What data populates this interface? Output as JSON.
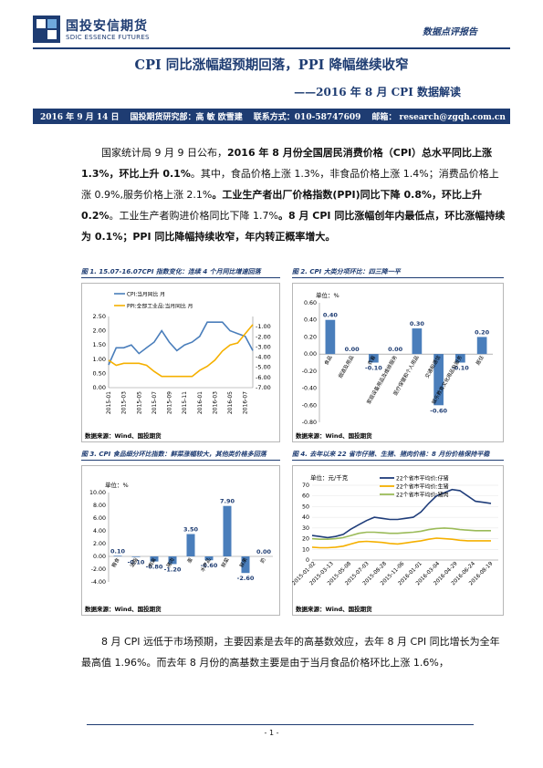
{
  "header": {
    "company_cn": "国投安信期货",
    "company_en": "SDIC ESSENCE FUTURES",
    "report_type": "数据点评报告"
  },
  "title": "CPI 同比涨幅超预期回落，PPI 降幅继续收窄",
  "subtitle": "——2016 年 8 月 CPI 数据解读",
  "info_bar": {
    "date": "2016 年 9 月 14 日",
    "dept": "国投期货研究部：高 敏 欧雪建",
    "contact": "联系方式：010-58747609",
    "email": "邮箱： research@zgqh.com.cn"
  },
  "para1": {
    "s1": "国家统计局 9 月 9 日公布，",
    "s2": "2016 年 8 月份全国居民消费价格（CPI）总水平同比上涨 1.3%，环比上升 0.1%",
    "s3": "。其中，食品价格上涨 1.3%，非食品价格上涨 1.4%；消费品价格上涨 0.9%,服务价格上涨 2.1%",
    "s4": "。工业生产者出厂价格指数(PPI)同比下降 0.8%，环比上升 0.2%",
    "s5": "。工业生产者购进价格同比下降 1.7%",
    "s6": "。8 月 CPI 同比涨幅创年内最低点，环比涨幅持续为 0.1%；PPI 同比降幅持续收窄，年内转正概率增大。"
  },
  "figures": {
    "fig1_title": "图 1. 15.07-16.07CPI 指数变化：连续 4 个月同比增速回落",
    "fig2_title": "图 2. CPI 大类分项环比：四三降一平",
    "fig3_title": "图 3. CPI 食品细分环比指数：鲜菜涨幅较大，其他类价格多回落",
    "fig4_title": "图 4. 去年以来 22 省市仔猪、生猪、猪肉价格：8 月份价格保持平稳",
    "source": "数据来源：Wind、国投期货"
  },
  "chart_data": [
    {
      "type": "line",
      "x": [
        "2015-01",
        "2015-02",
        "2015-03",
        "2015-04",
        "2015-05",
        "2015-06",
        "2015-07",
        "2015-08",
        "2015-09",
        "2015-10",
        "2015-11",
        "2015-12",
        "2016-01",
        "2016-02",
        "2016-03",
        "2016-04",
        "2016-05",
        "2016-06",
        "2016-07",
        "2016-08"
      ],
      "x_tick_labels": [
        "2015-01",
        "2015-03",
        "2015-05",
        "2015-07",
        "2015-09",
        "2015-11",
        "2016-01",
        "2016-03",
        "2016-05",
        "2016-07"
      ],
      "series": [
        {
          "name": "CPI:当月同比 月",
          "axis": "left",
          "color": "#4a7ebb",
          "values": [
            0.8,
            1.4,
            1.4,
            1.5,
            1.2,
            1.4,
            1.6,
            2.0,
            1.6,
            1.3,
            1.5,
            1.6,
            1.8,
            2.3,
            2.3,
            2.3,
            2.0,
            1.9,
            1.8,
            1.3
          ]
        },
        {
          "name": "PPI:全部工业品:当月同比 月",
          "axis": "right",
          "color": "#f5b000",
          "values": [
            -4.3,
            -4.8,
            -4.6,
            -4.6,
            -4.6,
            -4.8,
            -5.4,
            -5.9,
            -5.9,
            -5.9,
            -5.9,
            -5.9,
            -5.3,
            -4.9,
            -4.3,
            -3.4,
            -2.8,
            -2.6,
            -1.7,
            -0.8
          ]
        }
      ],
      "left_ticks": [
        "0.00",
        "0.50",
        "1.00",
        "1.50",
        "2.00",
        "2.50"
      ],
      "right_ticks": [
        "-1.00",
        "-2.00",
        "-3.00",
        "-4.00",
        "-5.00",
        "-6.00",
        "-7.00"
      ],
      "ylim_left": [
        0,
        2.5
      ],
      "ylim_right": [
        -7,
        0
      ]
    },
    {
      "type": "bar",
      "ylabel": "单位：%",
      "categories": [
        "食品",
        "烟酒及用品",
        "衣着",
        "家庭设备用品及维修服务",
        "医疗保健和个人用品",
        "交通和通信",
        "娱乐教育文化用品及服务",
        "居住"
      ],
      "values": [
        0.4,
        0.0,
        -0.1,
        0.0,
        0.3,
        -0.6,
        -0.1,
        0.2
      ],
      "value_labels": [
        "0.40",
        "0.00",
        "-0.10",
        "0.00",
        "0.30",
        "-0.60",
        "-0.10",
        "0.20"
      ],
      "ticks": [
        "0.60",
        "0.40",
        "0.20",
        "0.00",
        "-0.20",
        "-0.40",
        "-0.60",
        "-0.80"
      ],
      "ylim": [
        -0.8,
        0.6
      ],
      "color": "#4a7ebb"
    },
    {
      "type": "bar",
      "ylabel": "单位：%",
      "categories": [
        "粮食",
        "油脂",
        "肉禽",
        "猪肉",
        "蛋",
        "水产品",
        "鲜菜",
        "鲜果",
        "奶"
      ],
      "values": [
        0.1,
        -0.1,
        -0.8,
        -1.2,
        3.5,
        -0.6,
        7.9,
        -2.6,
        0.0
      ],
      "value_labels": [
        "0.10",
        "-0.10",
        "-0.80",
        "-1.20",
        "3.50",
        "-0.60",
        "7.90",
        "-2.60",
        "0.00"
      ],
      "ticks": [
        "10.00",
        "8.00",
        "6.00",
        "4.00",
        "2.00",
        "0.00",
        "-2.00",
        "-4.00"
      ],
      "ylim": [
        -4,
        10
      ],
      "color": "#4a7ebb"
    },
    {
      "type": "line",
      "ylabel": "单位：元/千克",
      "x_tick_labels": [
        "2015-01-02",
        "2015-03-13",
        "2015-05-08",
        "2015-07-03",
        "2015-08-28",
        "2015-11-06",
        "2016-01-01",
        "2016-03-04",
        "2016-04-29",
        "2016-06-24",
        "2016-08-19"
      ],
      "series": [
        {
          "name": "22个省市平均价:仔猪",
          "color": "#1f3d7a",
          "values": [
            23,
            22,
            21,
            22,
            24,
            29,
            33,
            37,
            40,
            39,
            38,
            38,
            39,
            40,
            45,
            53,
            60,
            63,
            66,
            65,
            60,
            55,
            54,
            53
          ]
        },
        {
          "name": "22个省市平均价:生猪",
          "color": "#f5b000",
          "values": [
            12,
            11.5,
            11.5,
            12,
            13,
            15,
            17,
            17.5,
            17,
            16.5,
            15.5,
            15,
            16,
            17,
            18,
            19.5,
            20.5,
            20,
            19.5,
            18.5,
            18,
            18,
            18,
            18
          ]
        },
        {
          "name": "22个省市平均价:猪肉",
          "color": "#9bbb59",
          "values": [
            20,
            19.5,
            19.5,
            20,
            21,
            23,
            25,
            26,
            26,
            25.5,
            25,
            25,
            25.5,
            26,
            27,
            28.5,
            29.5,
            30,
            29.5,
            28.5,
            28,
            27.5,
            27.5,
            27.5
          ]
        }
      ],
      "ticks": [
        "0",
        "10",
        "20",
        "30",
        "40",
        "50",
        "60",
        "70"
      ],
      "ylim": [
        0,
        70
      ]
    }
  ],
  "para2": {
    "text": "8 月 CPI 远低于市场预期，主要因素是去年的高基数效应，去年 8 月 CPI 同比增长为全年最高值 1.96%。而去年 8 月份的高基数主要是由于当月食品价格环比上涨 1.6%，"
  },
  "footer": {
    "page": "- 1 -"
  },
  "colors": {
    "brand": "#1e3c72",
    "bar": "#4a7ebb",
    "ppi": "#f5b000"
  }
}
